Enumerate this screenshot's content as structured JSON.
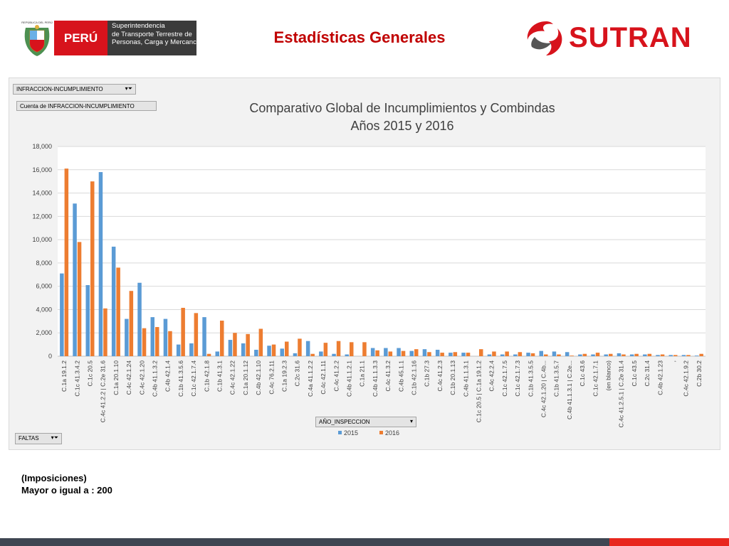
{
  "header": {
    "gov_logo": {
      "shield_caption": "REPÚBLICA DEL PERÚ",
      "country": "PERÚ",
      "agency_lines": [
        "Superintendencia",
        "de Transporte Terrestre de",
        "Personas, Carga y Mercancías"
      ]
    },
    "title": "Estadísticas Generales",
    "brand": "SUTRAN",
    "colors": {
      "title": "#c00000",
      "brand_red": "#d7131c",
      "agency_box": "#3b3b3b"
    }
  },
  "pivot_controls": {
    "filter_field": "INFRACCION-INCUMPLIMIENTO",
    "value_field": "Cuenta de INFRACCION-INCUMPLIMIENTO",
    "legend_field": "AÑO_INSPECCION",
    "axis_field": "FALTAS",
    "filter_icon": "filter-icon",
    "dropdown_icon": "dropdown-arrow-icon"
  },
  "chart_data": {
    "type": "bar",
    "title": "Comparativo Global de Incumplimientos y Combindas",
    "subtitle": "Años 2015 y 2016",
    "xlabel": "",
    "ylabel": "",
    "ylim": [
      0,
      18000
    ],
    "yticks": [
      0,
      2000,
      4000,
      6000,
      8000,
      10000,
      12000,
      14000,
      16000,
      18000
    ],
    "ytick_labels": [
      "0",
      "2,000",
      "4,000",
      "6,000",
      "8,000",
      "10,000",
      "12,000",
      "14,000",
      "16,000",
      "18,000"
    ],
    "grid": true,
    "legend_position": "bottom-center",
    "categories": [
      "C.1a 19.1.2",
      "C.1c 41.3.4.2",
      "C.1c 20.5",
      "C.4c 41.2.2 | C.2e 31.6",
      "C.1a 20.1.10",
      "C.4c 42.1.24",
      "C.4c 42.1.20",
      "C.4b 41.1.3.2",
      "C.4b 42.1.4",
      "C.1b 41.3.5.6",
      "C.1c 42.1.7.4",
      "C.1b 42.1.8",
      "C.1b 41.3.1",
      "C.4c 42.1.22",
      "C.1a 20.1.12",
      "C.4b 42.1.10",
      "C.4c 76.2.11",
      "C.1a 19.2.3",
      "C.2c 31.6",
      "C.4a 41.1.2.2",
      "C.4c 42.1.11",
      "C.4c 41.2.2",
      "C.4b 41.1.2.1",
      "C.1a 21.1",
      "C.4b 41.1.3.3",
      "C.4c 41.3.2",
      "C.4b 45.1.1",
      "C.1b 42.1.16",
      "C.1b 27.3",
      "C.4c 41.2.3",
      "C.1b 20.1.13",
      "C.4b 41.1.3.1",
      "C.1c 20.5 | C.1a 19.1.2",
      "C.4c 42.2.4",
      "C.1c 42.1.7.5",
      "C.1c 42.1.7.3",
      "C.1b 41.3.5.5",
      "C.4c 42.1.20 | C.4b...",
      "C.1b 41.3.5.7",
      "C.4b 41.1.3.1 | C.2e...",
      "C.1c 43.6",
      "C.1c 42.1.7.1",
      "(en blanco)",
      "C.4c 41.2.5.1 | C.2e 31.4",
      "C.1c 43.5",
      "C.2c 31.4",
      "C.4b 42.1.23",
      ",",
      "C.4c 42.1.9.2",
      "C.2b 30.2"
    ],
    "series": [
      {
        "name": "2015",
        "color": "#5b9bd5",
        "values": [
          7100,
          13100,
          6100,
          15800,
          9400,
          3200,
          6300,
          3350,
          3200,
          1000,
          1100,
          3350,
          400,
          1400,
          1100,
          550,
          900,
          650,
          250,
          1300,
          400,
          200,
          150,
          0,
          700,
          700,
          700,
          450,
          600,
          550,
          300,
          300,
          0,
          150,
          150,
          150,
          300,
          450,
          400,
          350,
          150,
          150,
          150,
          250,
          150,
          150,
          100,
          100,
          100,
          50
        ]
      },
      {
        "name": "2016",
        "color": "#ed7d31",
        "values": [
          16100,
          9800,
          15000,
          4100,
          7600,
          5600,
          2400,
          2500,
          2150,
          4150,
          3700,
          200,
          3050,
          2000,
          1900,
          2350,
          1000,
          1250,
          1500,
          200,
          1150,
          1300,
          1200,
          1200,
          500,
          400,
          450,
          600,
          350,
          300,
          350,
          300,
          600,
          400,
          400,
          350,
          250,
          150,
          150,
          50,
          200,
          300,
          200,
          150,
          200,
          200,
          150,
          100,
          100,
          200
        ]
      }
    ]
  },
  "footer": {
    "line1": "(Imposiciones)",
    "line2": "Mayor o igual a : 200"
  }
}
